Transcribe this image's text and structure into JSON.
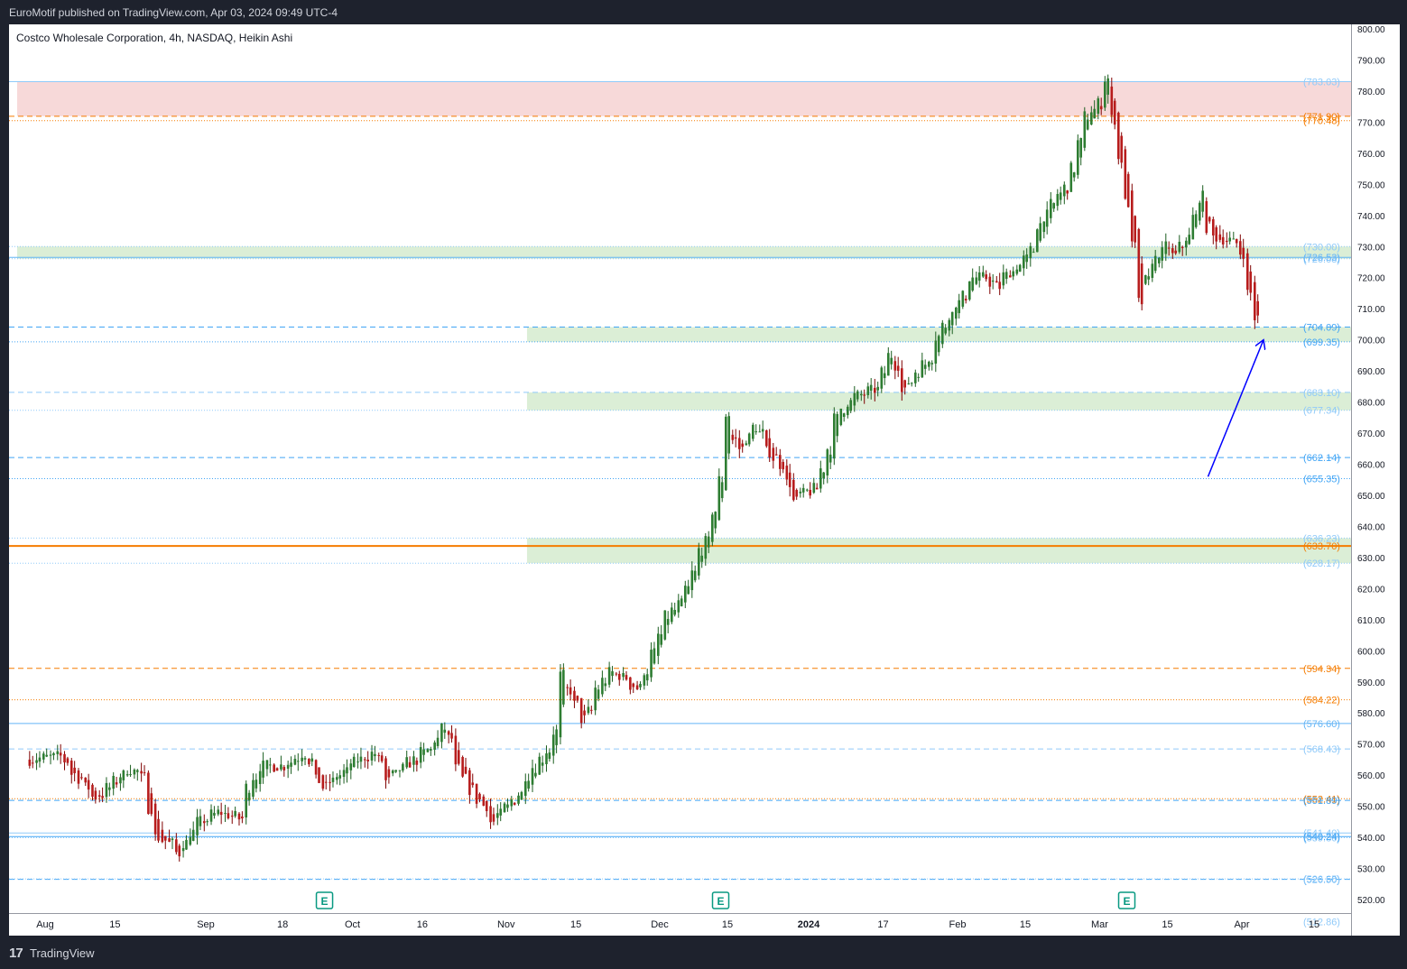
{
  "header": {
    "published_line": "EuroMotif published on TradingView.com, Apr 03, 2024 09:49 UTC-4"
  },
  "chart_title": "Costco Wholesale Corporation, 4h, NASDAQ, Heikin Ashi",
  "footer": {
    "logo": "17",
    "brand": "TradingView"
  },
  "chart_data": {
    "type": "candlestick",
    "subtype": "Heikin Ashi",
    "title": "Costco Wholesale Corporation, 4h, NASDAQ, Heikin Ashi",
    "ylim": [
      515,
      802
    ],
    "y_ticks": [
      520,
      530,
      540,
      550,
      560,
      570,
      580,
      590,
      600,
      610,
      620,
      630,
      640,
      650,
      660,
      670,
      680,
      690,
      700,
      710,
      720,
      730,
      740,
      750,
      760,
      770,
      780,
      790,
      800
    ],
    "y_tick_labels": [
      "520.00",
      "530.00",
      "540.00",
      "550.00",
      "560.00",
      "570.00",
      "580.00",
      "590.00",
      "600.00",
      "610.00",
      "620.00",
      "630.00",
      "640.00",
      "650.00",
      "660.00",
      "670.00",
      "680.00",
      "690.00",
      "700.00",
      "710.00",
      "720.00",
      "730.00",
      "740.00",
      "750.00",
      "760.00",
      "770.00",
      "780.00",
      "790.00",
      "800.00"
    ],
    "x_ticks": [
      {
        "label": "Aug",
        "bold": false,
        "date": "2023-08-01"
      },
      {
        "label": "15",
        "bold": false,
        "date": "2023-08-15"
      },
      {
        "label": "Sep",
        "bold": false,
        "date": "2023-09-01"
      },
      {
        "label": "18",
        "bold": false,
        "date": "2023-09-18"
      },
      {
        "label": "Oct",
        "bold": false,
        "date": "2023-10-02"
      },
      {
        "label": "16",
        "bold": false,
        "date": "2023-10-16"
      },
      {
        "label": "Nov",
        "bold": false,
        "date": "2023-11-01"
      },
      {
        "label": "15",
        "bold": false,
        "date": "2023-11-15"
      },
      {
        "label": "Dec",
        "bold": false,
        "date": "2023-12-01"
      },
      {
        "label": "15",
        "bold": false,
        "date": "2023-12-15"
      },
      {
        "label": "2024",
        "bold": true,
        "date": "2024-01-02"
      },
      {
        "label": "17",
        "bold": false,
        "date": "2024-01-17"
      },
      {
        "label": "Feb",
        "bold": false,
        "date": "2024-02-01"
      },
      {
        "label": "15",
        "bold": false,
        "date": "2024-02-15"
      },
      {
        "label": "Mar",
        "bold": false,
        "date": "2024-03-01"
      },
      {
        "label": "15",
        "bold": false,
        "date": "2024-03-15"
      },
      {
        "label": "Apr",
        "bold": false,
        "date": "2024-04-01"
      },
      {
        "label": "15",
        "bold": false,
        "date": "2024-04-15"
      }
    ],
    "close_path": [
      [
        "2023-07-28",
        565
      ],
      [
        "2023-08-03",
        566
      ],
      [
        "2023-08-08",
        559
      ],
      [
        "2023-08-10",
        553
      ],
      [
        "2023-08-14",
        556
      ],
      [
        "2023-08-17",
        562
      ],
      [
        "2023-08-21",
        559
      ],
      [
        "2023-08-23",
        540
      ],
      [
        "2023-08-28",
        535
      ],
      [
        "2023-08-31",
        545
      ],
      [
        "2023-09-05",
        548
      ],
      [
        "2023-09-08",
        546
      ],
      [
        "2023-09-13",
        563
      ],
      [
        "2023-09-18",
        563
      ],
      [
        "2023-09-21",
        567
      ],
      [
        "2023-09-26",
        556
      ],
      [
        "2023-09-28",
        560
      ],
      [
        "2023-10-03",
        565
      ],
      [
        "2023-10-05",
        567
      ],
      [
        "2023-10-09",
        558
      ],
      [
        "2023-10-12",
        564
      ],
      [
        "2023-10-17",
        568
      ],
      [
        "2023-10-19",
        575
      ],
      [
        "2023-10-23",
        562
      ],
      [
        "2023-10-26",
        552
      ],
      [
        "2023-10-30",
        545
      ],
      [
        "2023-11-02",
        552
      ],
      [
        "2023-11-06",
        560
      ],
      [
        "2023-11-09",
        568
      ],
      [
        "2023-11-13",
        592
      ],
      [
        "2023-11-16",
        578
      ],
      [
        "2023-11-20",
        588
      ],
      [
        "2023-11-22",
        593
      ],
      [
        "2023-11-28",
        588
      ],
      [
        "2023-12-01",
        605
      ],
      [
        "2023-12-06",
        615
      ],
      [
        "2023-12-08",
        625
      ],
      [
        "2023-12-12",
        635
      ],
      [
        "2023-12-14",
        655
      ],
      [
        "2023-12-15",
        676
      ],
      [
        "2023-12-19",
        665
      ],
      [
        "2023-12-21",
        672
      ],
      [
        "2023-12-27",
        660
      ],
      [
        "2023-12-29",
        648
      ],
      [
        "2024-01-03",
        652
      ],
      [
        "2024-01-05",
        665
      ],
      [
        "2024-01-09",
        678
      ],
      [
        "2024-01-11",
        682
      ],
      [
        "2024-01-16",
        684
      ],
      [
        "2024-01-18",
        695
      ],
      [
        "2024-01-22",
        683
      ],
      [
        "2024-01-24",
        690
      ],
      [
        "2024-01-29",
        701
      ],
      [
        "2024-02-01",
        712
      ],
      [
        "2024-02-05",
        720
      ],
      [
        "2024-02-07",
        720
      ],
      [
        "2024-02-09",
        717
      ],
      [
        "2024-02-13",
        722
      ],
      [
        "2024-02-15",
        726
      ],
      [
        "2024-02-20",
        740
      ],
      [
        "2024-02-22",
        747
      ],
      [
        "2024-02-26",
        755
      ],
      [
        "2024-02-28",
        772
      ],
      [
        "2024-03-01",
        776
      ],
      [
        "2024-03-04",
        784
      ],
      [
        "2024-03-06",
        758
      ],
      [
        "2024-03-08",
        730
      ],
      [
        "2024-03-11",
        712
      ],
      [
        "2024-03-13",
        726
      ],
      [
        "2024-03-15",
        730
      ],
      [
        "2024-03-18",
        727
      ],
      [
        "2024-03-20",
        733
      ],
      [
        "2024-03-22",
        746
      ],
      [
        "2024-03-26",
        733
      ],
      [
        "2024-03-28",
        732
      ],
      [
        "2024-04-01",
        728
      ],
      [
        "2024-04-02",
        715
      ],
      [
        "2024-04-03",
        707
      ]
    ],
    "earnings_markers": [
      "2023-09-26",
      "2023-12-14",
      "2024-03-07"
    ],
    "earnings_marker_label": "E",
    "zones": [
      {
        "top": 783.03,
        "bottom": 771.9,
        "from": "2023-07-26",
        "to": "end",
        "color": "#f7d9d9"
      },
      {
        "top": 730.0,
        "bottom": 726.08,
        "from": "2023-07-26",
        "to": "end",
        "color": "#dbeed6"
      },
      {
        "top": 704.09,
        "bottom": 699.35,
        "from": "2023-11-04",
        "to": "end",
        "color": "#dbeed6"
      },
      {
        "top": 683.1,
        "bottom": 677.34,
        "from": "2023-11-05",
        "to": "end",
        "color": "#dbeed6"
      },
      {
        "top": 636.23,
        "bottom": 628.17,
        "from": "2023-11-05",
        "to": "end",
        "color": "#dbeed6"
      }
    ],
    "horizontal_levels": [
      {
        "value": 783.03,
        "label": "(783.03)",
        "color": "#90caf9",
        "style": "solid"
      },
      {
        "value": 771.9,
        "label": "(771.90)",
        "color": "#f57c00",
        "style": "dashed"
      },
      {
        "value": 770.48,
        "label": "(770.48)",
        "color": "#f57c00",
        "style": "dotted"
      },
      {
        "value": 730.0,
        "label": "(730.00)",
        "color": "#90caf9",
        "style": "dotted"
      },
      {
        "value": 726.08,
        "label": "(726.08)",
        "color": "#90caf9",
        "style": "dotted"
      },
      {
        "value": 726.53,
        "label": "(726.53)",
        "color": "#64b5f6",
        "style": "solid"
      },
      {
        "value": 704.09,
        "label": "(704.09)",
        "color": "#42a5f5",
        "style": "dashed"
      },
      {
        "value": 699.35,
        "label": "(699.35)",
        "color": "#42a5f5",
        "style": "dotted"
      },
      {
        "value": 683.1,
        "label": "(683.10)",
        "color": "#90caf9",
        "style": "dashed"
      },
      {
        "value": 677.34,
        "label": "(677.34)",
        "color": "#90caf9",
        "style": "dotted"
      },
      {
        "value": 662.14,
        "label": "(662.14)",
        "color": "#42a5f5",
        "style": "dashed"
      },
      {
        "value": 655.35,
        "label": "(655.35)",
        "color": "#42a5f5",
        "style": "dotted"
      },
      {
        "value": 636.23,
        "label": "(636.23)",
        "color": "#90caf9",
        "style": "dotted"
      },
      {
        "value": 633.7,
        "label": "(633.70)",
        "color": "#f57c00",
        "style": "solid"
      },
      {
        "value": 628.17,
        "label": "(628.17)",
        "color": "#90caf9",
        "style": "dotted"
      },
      {
        "value": 594.34,
        "label": "(594.34)",
        "color": "#f57c00",
        "style": "dashed"
      },
      {
        "value": 584.22,
        "label": "(584.22)",
        "color": "#f57c00",
        "style": "dotted"
      },
      {
        "value": 576.6,
        "label": "(576.60)",
        "color": "#64b5f6",
        "style": "solid"
      },
      {
        "value": 568.43,
        "label": "(568.43)",
        "color": "#90caf9",
        "style": "dashed"
      },
      {
        "value": 552.41,
        "label": "(552.41)",
        "color": "#f57c00",
        "style": "dotted"
      },
      {
        "value": 551.89,
        "label": "(551.89)",
        "color": "#42a5f5",
        "style": "dashed"
      },
      {
        "value": 541.4,
        "label": "(541.40)",
        "color": "#90caf9",
        "style": "solid"
      },
      {
        "value": 539.86,
        "label": "(539.86)",
        "color": "#90caf9",
        "style": "dotted"
      },
      {
        "value": 540.24,
        "label": "(540.24)",
        "color": "#42a5f5",
        "style": "solid"
      },
      {
        "value": 526.5,
        "label": "(526.50)",
        "color": "#42a5f5",
        "style": "dashed"
      },
      {
        "value": 526.65,
        "label": "(526.65)",
        "color": "#90caf9",
        "style": "dotted"
      },
      {
        "value": 512.86,
        "label": "(512.86)",
        "color": "#90caf9",
        "style": "dotted"
      }
    ],
    "annotation_arrow": {
      "from": [
        "2024-03-24",
        656
      ],
      "to": [
        "2024-04-04",
        700
      ],
      "color": "#0000ff"
    },
    "colors": {
      "up": "#26a69a",
      "down": "#ef5350",
      "up_body": "#2e7d32",
      "down_body": "#b71c1c",
      "zone_red": "#f7d9d9",
      "zone_green": "#dbeed6"
    }
  }
}
